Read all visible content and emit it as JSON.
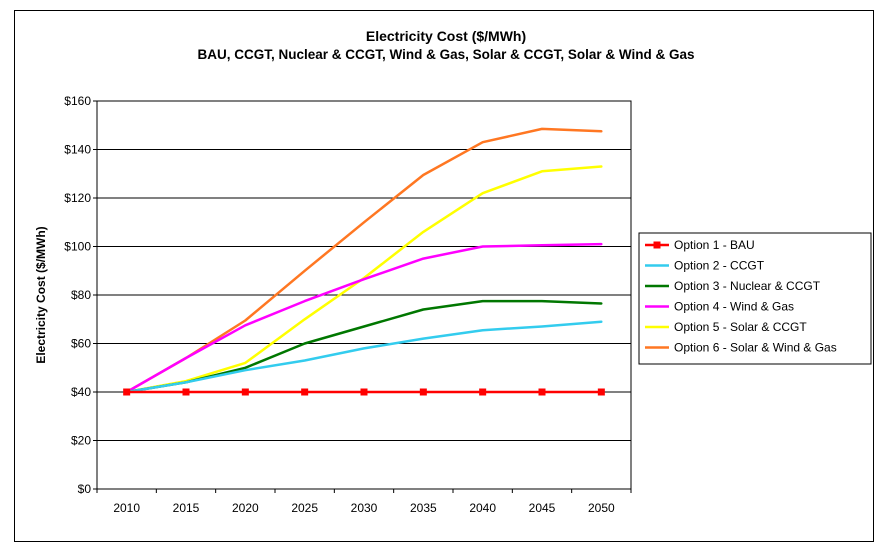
{
  "chart_data": {
    "type": "line",
    "title": "Electricity Cost ($/MWh)",
    "subtitle": "BAU, CCGT, Nuclear & CCGT, Wind & Gas, Solar & CCGT, Solar & Wind & Gas",
    "xlabel": "",
    "ylabel": "Electricity Cost ($/MWh)",
    "x": [
      2010,
      2015,
      2020,
      2025,
      2030,
      2035,
      2040,
      2045,
      2050
    ],
    "ylim": [
      0,
      160
    ],
    "yticks": [
      0,
      20,
      40,
      60,
      80,
      100,
      120,
      140,
      160
    ],
    "ytick_labels": [
      "$0",
      "$20",
      "$40",
      "$60",
      "$80",
      "$100",
      "$120",
      "$140",
      "$160"
    ],
    "grid": "horizontal",
    "legend_position": "right",
    "series": [
      {
        "name": "Option 1 - BAU",
        "color": "#ff0000",
        "marker": "square",
        "values": [
          40,
          40,
          40,
          40,
          40,
          40,
          40,
          40,
          40
        ]
      },
      {
        "name": "Option 2 - CCGT",
        "color": "#33ccee",
        "marker": "none",
        "values": [
          40,
          44,
          49,
          53,
          58,
          62,
          65.5,
          67,
          69
        ]
      },
      {
        "name": "Option 3 - Nuclear & CCGT",
        "color": "#007700",
        "marker": "none",
        "values": [
          40,
          44,
          50,
          60,
          67,
          74,
          77.5,
          77.5,
          76.5
        ]
      },
      {
        "name": "Option 4 - Wind & Gas",
        "color": "#ff00ff",
        "marker": "none",
        "values": [
          40,
          54,
          67.5,
          77.5,
          86.5,
          95,
          100,
          100.5,
          101
        ]
      },
      {
        "name": "Option 5 - Solar & CCGT",
        "color": "#ffff00",
        "marker": "none",
        "values": [
          40,
          44.5,
          52,
          70,
          87,
          106,
          122,
          131,
          133
        ]
      },
      {
        "name": "Option 6 - Solar & Wind & Gas",
        "color": "#ff7722",
        "marker": "none",
        "values": [
          40,
          54,
          69.5,
          90,
          110,
          129.5,
          143,
          148.5,
          147.5
        ]
      }
    ]
  }
}
